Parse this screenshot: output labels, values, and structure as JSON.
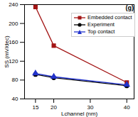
{
  "chart_data": {
    "type": "line",
    "annotation": "(g)",
    "x_label": "Lchannel (nm)",
    "y_label": "SS (mV/dec)",
    "xlim": [
      12,
      42
    ],
    "xticks": [
      15,
      20,
      30,
      40
    ],
    "ylim": [
      40,
      240
    ],
    "yticks": [
      40,
      80,
      120,
      160,
      200,
      240
    ],
    "legend": "upper right",
    "series": [
      {
        "name": "Embedded contact",
        "color": "#a31515",
        "marker": "square",
        "x": [
          15,
          20,
          40
        ],
        "values": [
          235,
          153,
          75
        ]
      },
      {
        "name": "Experiment",
        "color": "#000000",
        "marker": "circle",
        "x": [
          15,
          20,
          40
        ],
        "values": [
          92,
          85,
          68
        ]
      },
      {
        "name": "Top contact",
        "color": "#2233cc",
        "marker": "triangle",
        "x": [
          15,
          20,
          40
        ],
        "values": [
          94,
          87,
          70
        ]
      }
    ]
  }
}
